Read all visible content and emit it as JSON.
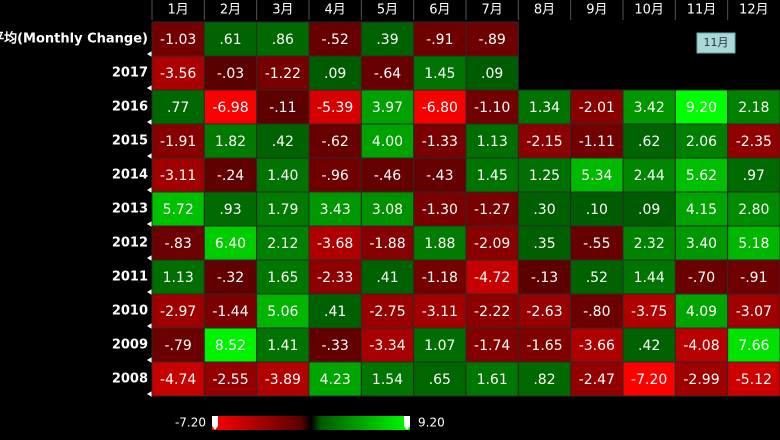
{
  "chart_data": {
    "type": "heatmap",
    "categories": [
      "1月",
      "2月",
      "3月",
      "4月",
      "5月",
      "6月",
      "7月",
      "8月",
      "9月",
      "10月",
      "11月",
      "12月"
    ],
    "series": [
      {
        "name": "平均(Monthly Change)",
        "values": [
          -1.03,
          0.61,
          0.86,
          -0.52,
          0.39,
          -0.91,
          -0.89,
          null,
          null,
          null,
          null,
          null
        ],
        "value_labels": [
          "-1.03",
          ".61",
          ".86",
          "-.52",
          ".39",
          "-.91",
          "-.89",
          null,
          null,
          null,
          null,
          null
        ]
      },
      {
        "name": "2017",
        "values": [
          -3.56,
          -0.03,
          -1.22,
          0.09,
          -0.64,
          1.45,
          0.09,
          null,
          null,
          null,
          null,
          null
        ],
        "value_labels": [
          "-3.56",
          "-.03",
          "-1.22",
          ".09",
          "-.64",
          "1.45",
          ".09",
          null,
          null,
          null,
          null,
          null
        ]
      },
      {
        "name": "2016",
        "values": [
          0.77,
          -6.98,
          -0.11,
          -5.39,
          3.97,
          -6.8,
          -1.1,
          1.34,
          -2.01,
          3.42,
          9.2,
          2.18
        ],
        "value_labels": [
          ".77",
          "-6.98",
          "-.11",
          "-5.39",
          "3.97",
          "-6.80",
          "-1.10",
          "1.34",
          "-2.01",
          "3.42",
          "9.20",
          "2.18"
        ]
      },
      {
        "name": "2015",
        "values": [
          -1.91,
          1.82,
          0.42,
          -0.62,
          4.0,
          -1.33,
          1.13,
          -2.15,
          -1.11,
          0.62,
          2.06,
          -2.35
        ],
        "value_labels": [
          "-1.91",
          "1.82",
          ".42",
          "-.62",
          "4.00",
          "-1.33",
          "1.13",
          "-2.15",
          "-1.11",
          ".62",
          "2.06",
          "-2.35"
        ]
      },
      {
        "name": "2014",
        "values": [
          -3.11,
          -0.24,
          1.4,
          -0.96,
          -0.46,
          -0.43,
          1.45,
          1.25,
          5.34,
          2.44,
          5.62,
          0.97
        ],
        "value_labels": [
          "-3.11",
          "-.24",
          "1.40",
          "-.96",
          "-.46",
          "-.43",
          "1.45",
          "1.25",
          "5.34",
          "2.44",
          "5.62",
          ".97"
        ]
      },
      {
        "name": "2013",
        "values": [
          5.72,
          0.93,
          1.79,
          3.43,
          3.08,
          -1.3,
          -1.27,
          0.3,
          0.1,
          0.09,
          4.15,
          2.8
        ],
        "value_labels": [
          "5.72",
          ".93",
          "1.79",
          "3.43",
          "3.08",
          "-1.30",
          "-1.27",
          ".30",
          ".10",
          ".09",
          "4.15",
          "2.80"
        ]
      },
      {
        "name": "2012",
        "values": [
          -0.83,
          6.4,
          2.12,
          -3.68,
          -1.88,
          1.88,
          -2.09,
          0.35,
          -0.55,
          2.32,
          3.4,
          5.18
        ],
        "value_labels": [
          "-.83",
          "6.40",
          "2.12",
          "-3.68",
          "-1.88",
          "1.88",
          "-2.09",
          ".35",
          "-.55",
          "2.32",
          "3.40",
          "5.18"
        ]
      },
      {
        "name": "2011",
        "values": [
          1.13,
          -0.32,
          1.65,
          -2.33,
          0.41,
          -1.18,
          -4.72,
          -0.13,
          0.52,
          1.44,
          -0.7,
          -0.91
        ],
        "value_labels": [
          "1.13",
          "-.32",
          "1.65",
          "-2.33",
          ".41",
          "-1.18",
          "-4.72",
          "-.13",
          ".52",
          "1.44",
          "-.70",
          "-.91"
        ]
      },
      {
        "name": "2010",
        "values": [
          -2.97,
          -1.44,
          5.06,
          0.41,
          -2.75,
          -3.11,
          -2.22,
          -2.63,
          -0.8,
          -3.75,
          4.09,
          -3.07
        ],
        "value_labels": [
          "-2.97",
          "-1.44",
          "5.06",
          ".41",
          "-2.75",
          "-3.11",
          "-2.22",
          "-2.63",
          "-.80",
          "-3.75",
          "4.09",
          "-3.07"
        ]
      },
      {
        "name": "2009",
        "values": [
          -0.79,
          8.52,
          1.41,
          -0.33,
          -3.34,
          1.07,
          -1.74,
          -1.65,
          -3.66,
          0.42,
          -4.08,
          7.66
        ],
        "value_labels": [
          "-.79",
          "8.52",
          "1.41",
          "-.33",
          "-3.34",
          "1.07",
          "-1.74",
          "-1.65",
          "-3.66",
          ".42",
          "-4.08",
          "7.66"
        ]
      },
      {
        "name": "2008",
        "values": [
          -4.74,
          -2.55,
          -3.89,
          4.23,
          1.54,
          0.65,
          1.61,
          0.82,
          -2.47,
          -7.2,
          -2.99,
          -5.12
        ],
        "value_labels": [
          "-4.74",
          "-2.55",
          "-3.89",
          "4.23",
          "1.54",
          ".65",
          "1.61",
          ".82",
          "-2.47",
          "-7.20",
          "-2.99",
          "-5.12"
        ]
      }
    ],
    "colorscale": [
      "#ff0000",
      "#5a0000",
      "#005a00",
      "#00ff00"
    ],
    "colorbar": {
      "min": {
        "value": -7.2,
        "label": "-7.20"
      },
      "max": {
        "value": 9.2,
        "label": "9.20"
      }
    },
    "tooltip": "11月"
  }
}
